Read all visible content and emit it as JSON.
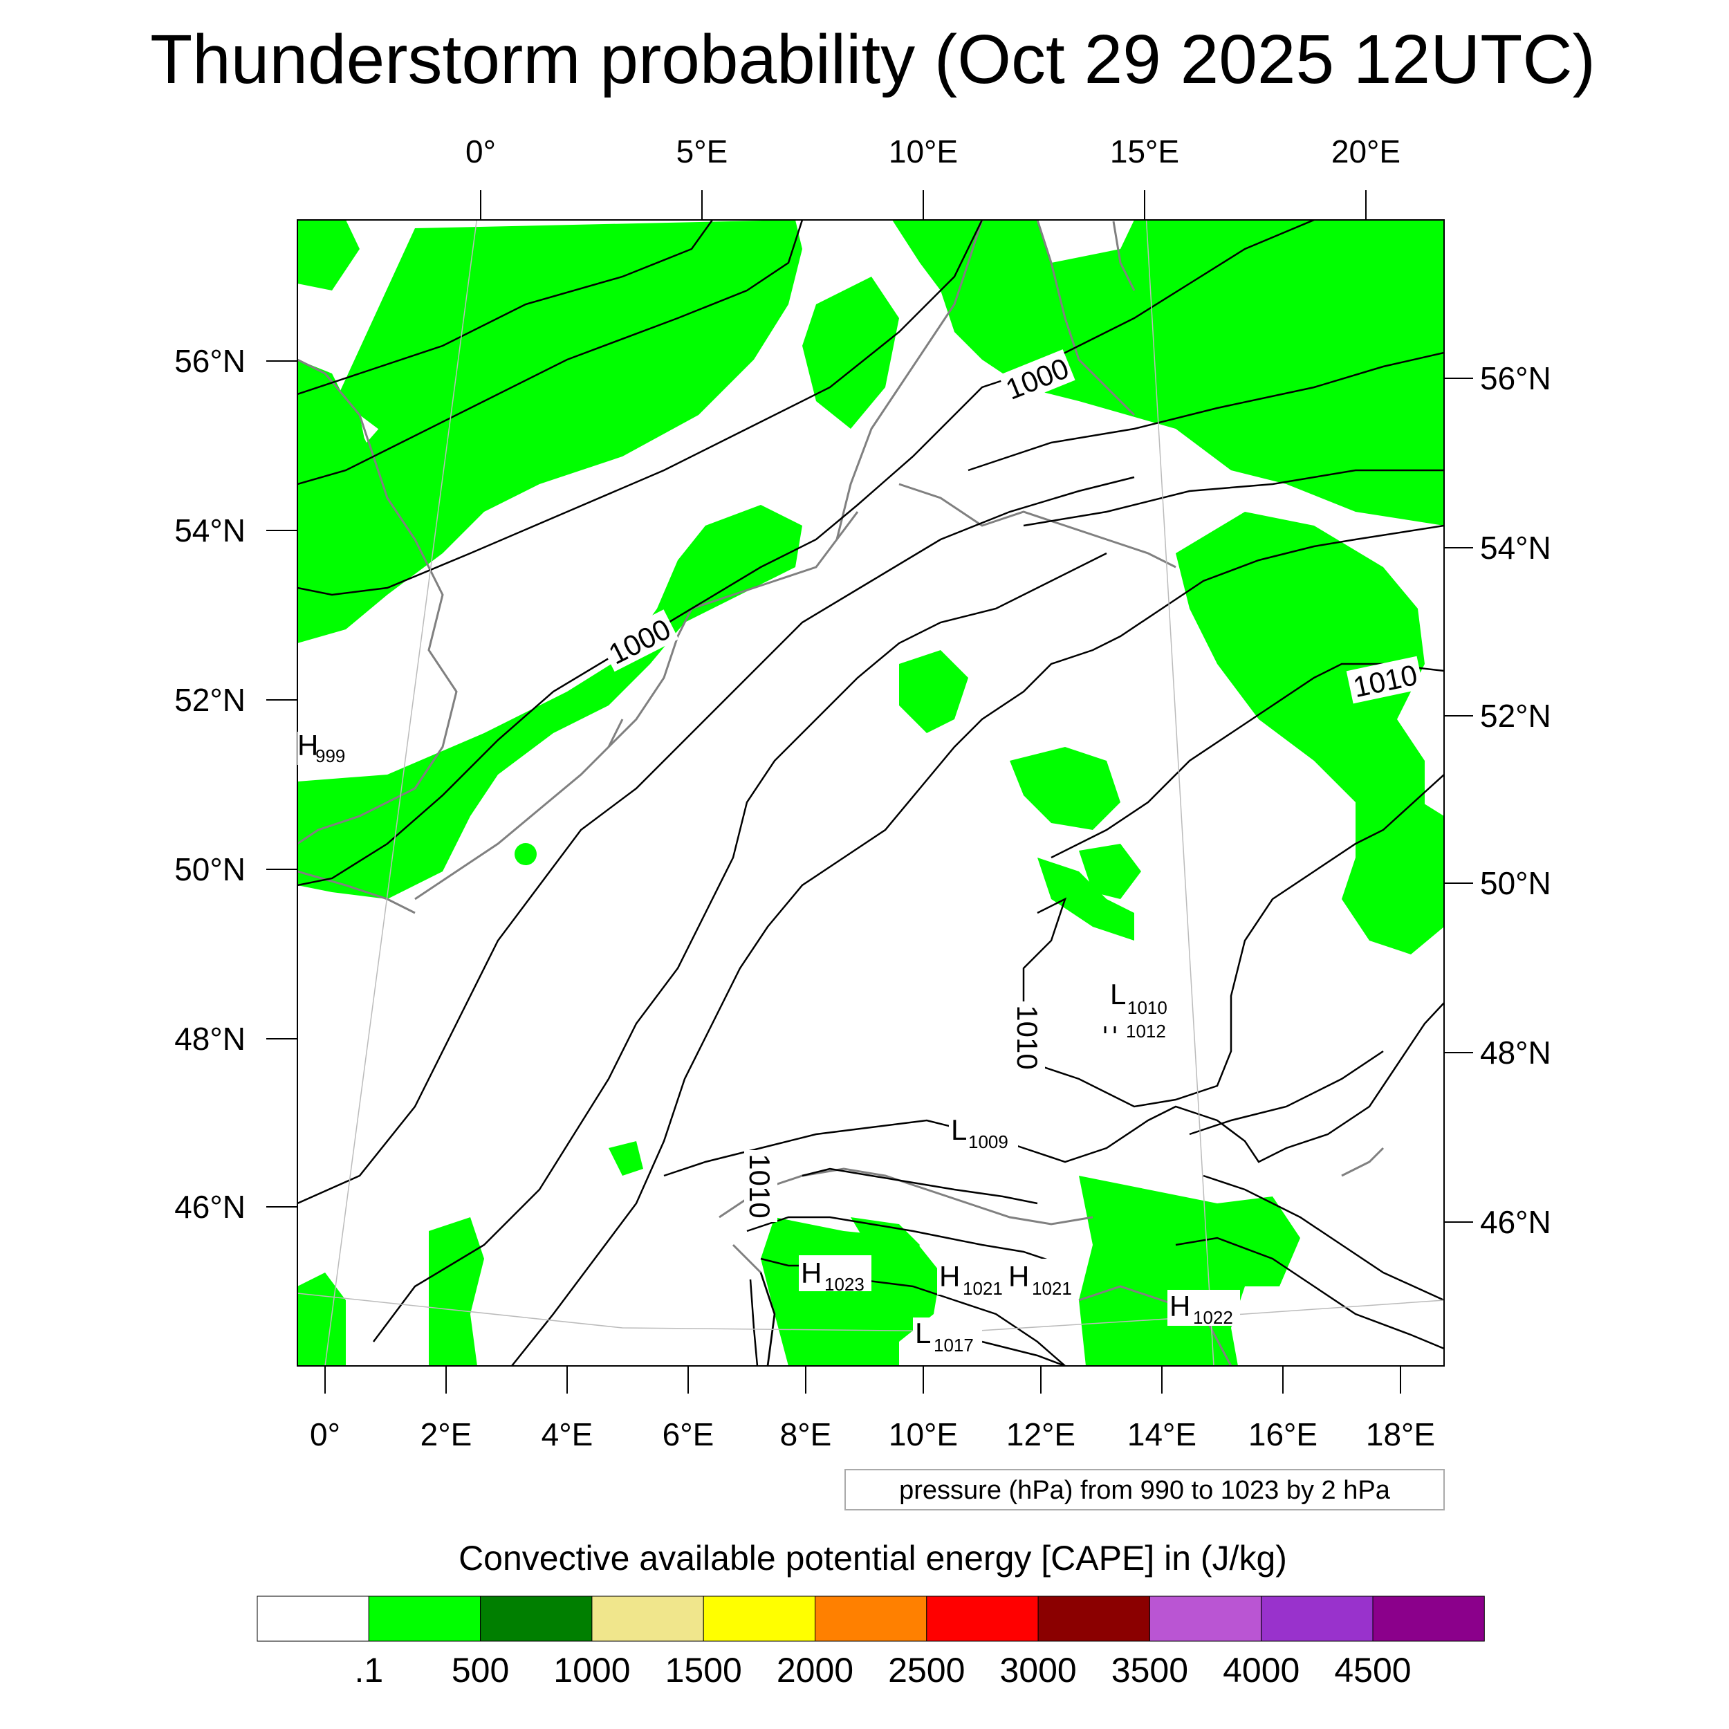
{
  "title": "Thunderstorm probability (Oct 29 2025 12UTC)",
  "top_lon_labels": [
    "0°",
    "5°E",
    "10°E",
    "15°E",
    "20°E"
  ],
  "bottom_lon_labels": [
    "0°",
    "2°E",
    "4°E",
    "6°E",
    "8°E",
    "10°E",
    "12°E",
    "14°E",
    "16°E",
    "18°E"
  ],
  "left_lat_labels": [
    "56°N",
    "54°N",
    "52°N",
    "50°N",
    "48°N",
    "46°N"
  ],
  "right_lat_labels": [
    "56°N",
    "54°N",
    "52°N",
    "50°N",
    "48°N",
    "46°N"
  ],
  "isobar_labels": [
    {
      "text": "1000"
    },
    {
      "text": "1000"
    },
    {
      "text": "1010"
    },
    {
      "text": "1010"
    },
    {
      "text": "1010"
    }
  ],
  "pressure_centers": [
    {
      "letter": "H",
      "value": "999"
    },
    {
      "letter": "L",
      "value": "1010"
    },
    {
      "letter": "",
      "value": "1012"
    },
    {
      "letter": "L",
      "value": "1009"
    },
    {
      "letter": "H",
      "value": "1023"
    },
    {
      "letter": "H",
      "value": "1021"
    },
    {
      "letter": "H",
      "value": "1021"
    },
    {
      "letter": "L",
      "value": "1017"
    },
    {
      "letter": "H",
      "value": "1022"
    }
  ],
  "contour_note": "pressure (hPa) from 990 to 1023 by 2 hPa",
  "colorbar": {
    "title": "Convective available potential energy [CAPE] in (J/kg)",
    "colors": [
      "#ffffff",
      "#00ff00",
      "#007f00",
      "#f0e68c",
      "#ffff00",
      "#ff8000",
      "#ff0000",
      "#8b0000",
      "#ba55d3",
      "#9932cc",
      "#8b008b"
    ],
    "labels": [
      ".1",
      "500",
      "1000",
      "1500",
      "2000",
      "2500",
      "3000",
      "3500",
      "4000",
      "4500"
    ]
  },
  "colors": {
    "cape_low": "#00ff00",
    "coastline": "#808080",
    "isobar": "#000000"
  }
}
